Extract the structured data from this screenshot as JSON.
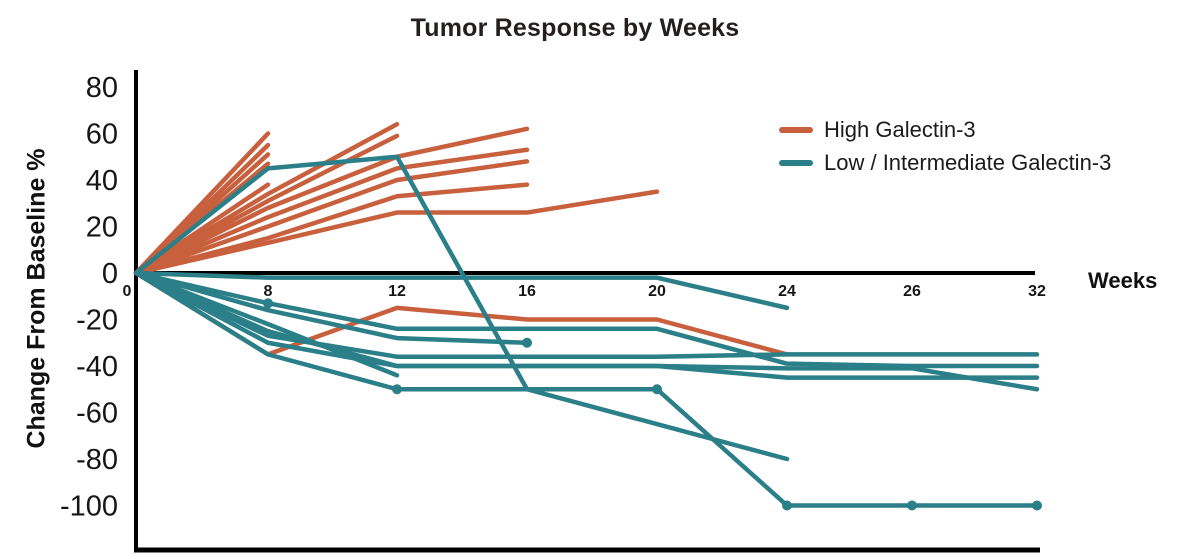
{
  "title": "Tumor Response by Weeks",
  "x_axis": {
    "label": "Weeks",
    "ticks": [
      0,
      8,
      12,
      16,
      20,
      24,
      26,
      32
    ]
  },
  "y_axis": {
    "label": "Change From Baseline %",
    "ticks": [
      80,
      60,
      40,
      20,
      0,
      -20,
      -40,
      -60,
      -80,
      -100
    ]
  },
  "legend": [
    {
      "label": "High Galectin-3",
      "color": "#c8603e"
    },
    {
      "label": "Low / Intermediate Galectin-3",
      "color": "#2a7f89"
    }
  ],
  "chart_data": {
    "type": "line",
    "title": "Tumor Response by Weeks",
    "xlabel": "Weeks",
    "ylabel": "Change From Baseline %",
    "ylim": [
      -115,
      87
    ],
    "x_ticks": [
      0,
      8,
      12,
      16,
      20,
      24,
      26,
      32
    ],
    "grid": false,
    "legend_position": "upper right",
    "series": [
      {
        "name": "High Galectin-3",
        "color": "#c8603e",
        "lines": [
          {
            "points": [
              [
                0,
                0
              ],
              [
                8,
                60
              ]
            ]
          },
          {
            "points": [
              [
                0,
                0
              ],
              [
                8,
                55
              ]
            ]
          },
          {
            "points": [
              [
                0,
                0
              ],
              [
                8,
                51
              ]
            ]
          },
          {
            "points": [
              [
                0,
                0
              ],
              [
                8,
                47
              ]
            ]
          },
          {
            "points": [
              [
                0,
                0
              ],
              [
                8,
                38
              ]
            ]
          },
          {
            "points": [
              [
                0,
                0
              ],
              [
                8,
                34
              ],
              [
                12,
                64
              ]
            ]
          },
          {
            "points": [
              [
                0,
                0
              ],
              [
                8,
                31
              ],
              [
                12,
                59
              ]
            ]
          },
          {
            "points": [
              [
                0,
                0
              ],
              [
                8,
                28
              ],
              [
                12,
                50
              ],
              [
                16,
                62
              ]
            ]
          },
          {
            "points": [
              [
                0,
                0
              ],
              [
                8,
                24
              ],
              [
                12,
                45
              ],
              [
                16,
                53
              ]
            ]
          },
          {
            "points": [
              [
                0,
                0
              ],
              [
                8,
                20
              ],
              [
                12,
                40
              ],
              [
                16,
                48
              ]
            ]
          },
          {
            "points": [
              [
                0,
                0
              ],
              [
                8,
                15
              ],
              [
                12,
                33
              ],
              [
                16,
                38
              ]
            ]
          },
          {
            "points": [
              [
                0,
                0
              ],
              [
                8,
                13
              ],
              [
                12,
                26
              ],
              [
                16,
                26
              ],
              [
                20,
                35
              ]
            ]
          },
          {
            "points": [
              [
                0,
                0
              ],
              [
                8,
                -35
              ],
              [
                12,
                -15
              ],
              [
                16,
                -20
              ],
              [
                20,
                -20
              ],
              [
                24,
                -35
              ]
            ]
          }
        ]
      },
      {
        "name": "Low / Intermediate Galectin-3",
        "color": "#2a7f89",
        "lines": [
          {
            "points": [
              [
                0,
                0
              ],
              [
                8,
                45
              ],
              [
                12,
                50
              ],
              [
                16,
                -50
              ],
              [
                24,
                -80
              ]
            ]
          },
          {
            "points": [
              [
                0,
                0
              ],
              [
                8,
                -2
              ],
              [
                12,
                -2
              ],
              [
                16,
                -2
              ],
              [
                20,
                -2
              ],
              [
                24,
                -15
              ]
            ]
          },
          {
            "points": [
              [
                0,
                0
              ],
              [
                8,
                -13
              ],
              [
                12,
                -24
              ],
              [
                16,
                -24
              ],
              [
                20,
                -24
              ],
              [
                24,
                -39
              ],
              [
                26,
                -40
              ],
              [
                32,
                -40
              ]
            ],
            "dots": [
              [
                8,
                -13
              ]
            ]
          },
          {
            "points": [
              [
                0,
                0
              ],
              [
                8,
                -16
              ],
              [
                12,
                -28
              ],
              [
                16,
                -30
              ]
            ],
            "dots": [
              [
                16,
                -30
              ]
            ]
          },
          {
            "points": [
              [
                0,
                0
              ],
              [
                8,
                -27
              ],
              [
                12,
                -36
              ],
              [
                16,
                -36
              ],
              [
                20,
                -36
              ],
              [
                24,
                -35
              ],
              [
                26,
                -35
              ],
              [
                32,
                -35
              ]
            ]
          },
          {
            "points": [
              [
                0,
                0
              ],
              [
                8,
                -30
              ],
              [
                12,
                -40
              ],
              [
                16,
                -40
              ],
              [
                20,
                -40
              ],
              [
                24,
                -41
              ],
              [
                26,
                -41
              ],
              [
                32,
                -50
              ]
            ]
          },
          {
            "points": [
              [
                0,
                0
              ],
              [
                8,
                -35
              ],
              [
                12,
                -50
              ],
              [
                16,
                -50
              ],
              [
                20,
                -50
              ],
              [
                24,
                -100
              ],
              [
                26,
                -100
              ],
              [
                32,
                -100
              ]
            ],
            "dots": [
              [
                12,
                -50
              ],
              [
                20,
                -50
              ],
              [
                24,
                -100
              ],
              [
                26,
                -100
              ],
              [
                32,
                -100
              ]
            ]
          },
          {
            "points": [
              [
                0,
                0
              ],
              [
                8,
                -22
              ],
              [
                12,
                -44
              ]
            ]
          },
          {
            "points": [
              [
                0,
                0
              ],
              [
                8,
                -25
              ],
              [
                12,
                -40
              ],
              [
                16,
                -40
              ],
              [
                20,
                -40
              ],
              [
                24,
                -45
              ],
              [
                26,
                -45
              ],
              [
                32,
                -45
              ]
            ]
          }
        ]
      }
    ]
  }
}
